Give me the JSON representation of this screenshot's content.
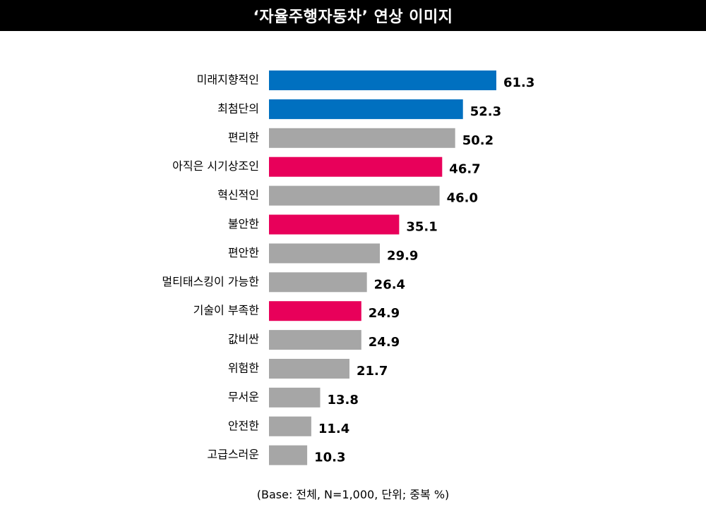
{
  "chart_data": {
    "type": "bar",
    "orientation": "horizontal",
    "title": "‘자율주행자동차’ 연상 이미지",
    "categories": [
      "미래지향적인",
      "최첨단의",
      "편리한",
      "아직은 시기상조인",
      "혁신적인",
      "불안한",
      "편안한",
      "멀티태스킹이 가능한",
      "기술이 부족한",
      "값비싼",
      "위험한",
      "무서운",
      "안전한",
      "고급스러운"
    ],
    "values": [
      61.3,
      52.3,
      50.2,
      46.7,
      46.0,
      35.1,
      29.9,
      26.4,
      24.9,
      24.9,
      21.7,
      13.8,
      11.4,
      10.3
    ],
    "value_labels": [
      "61.3",
      "52.3",
      "50.2",
      "46.7",
      "46.0",
      "35.1",
      "29.9",
      "26.4",
      "24.9",
      "24.9",
      "21.7",
      "13.8",
      "11.4",
      "10.3"
    ],
    "bar_colors": [
      "#0070C0",
      "#0070C0",
      "#A6A6A6",
      "#E8005A",
      "#A6A6A6",
      "#E8005A",
      "#A6A6A6",
      "#A6A6A6",
      "#E8005A",
      "#A6A6A6",
      "#A6A6A6",
      "#A6A6A6",
      "#A6A6A6",
      "#A6A6A6"
    ],
    "xlim": [
      0,
      61.3
    ],
    "grid": false,
    "legend": "none"
  },
  "footnote": "(Base: 전체, N=1,000, 단위; 중복 %)"
}
